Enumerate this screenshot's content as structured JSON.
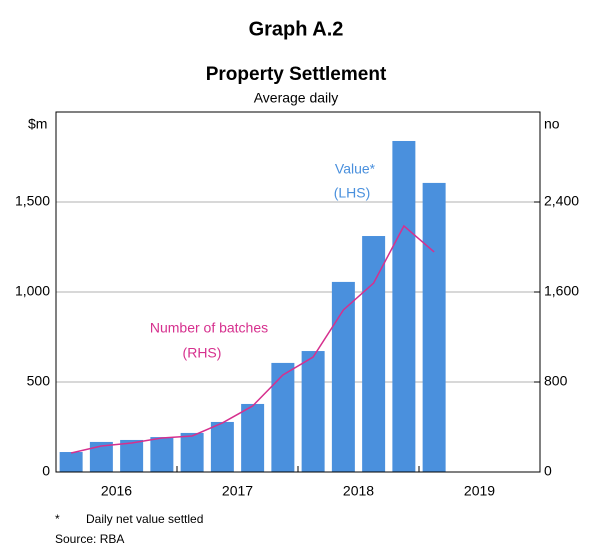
{
  "chart_data": {
    "type": "bar_line",
    "title": "Graph A.2",
    "subtitle": "Property Settlement",
    "subtitle2": "Average daily",
    "y_label": "$m",
    "y2_label": "no",
    "x": [
      2016.125,
      2016.375,
      2016.625,
      2016.875,
      2017.125,
      2017.375,
      2017.625,
      2017.875,
      2018.125,
      2018.375,
      2018.625,
      2018.875,
      2019.125
    ],
    "xlim": [
      2016,
      2020
    ],
    "xticks": [
      2016,
      2017,
      2018,
      2019,
      2020
    ],
    "year_labels": [
      "2016",
      "2017",
      "2018",
      "2019"
    ],
    "series": [
      {
        "name": "Value*",
        "color": "#4a90dd",
        "kind": "bar",
        "axis": "y",
        "values": [
          111,
          167,
          178,
          194,
          217,
          278,
          378,
          606,
          672,
          1056,
          1311,
          1839,
          1606
        ]
      },
      {
        "name": "Number of batches",
        "color": "#d6308e",
        "kind": "line",
        "axis": "y2",
        "values": [
          169,
          231,
          258,
          302,
          320,
          436,
          587,
          862,
          1022,
          1440,
          1680,
          2187,
          1956
        ]
      }
    ],
    "ylim": [
      0,
      2000
    ],
    "yticks": [
      0,
      500,
      {
        "value": 1000,
        "label": "1,000"
      },
      {
        "value": 1500,
        "label": "1,500"
      }
    ],
    "y2lim": [
      0,
      3200
    ],
    "y2ticks": [
      0,
      800,
      {
        "value": 1600,
        "label": "1,600"
      },
      {
        "value": 2400,
        "label": "2,400"
      }
    ],
    "grid": true,
    "annotations": [
      "Value*",
      "(LHS)",
      "Number of batches",
      "(RHS)"
    ],
    "footnote_mark": "*",
    "footnote": "Daily net value settled",
    "source": "Source:   RBA"
  }
}
